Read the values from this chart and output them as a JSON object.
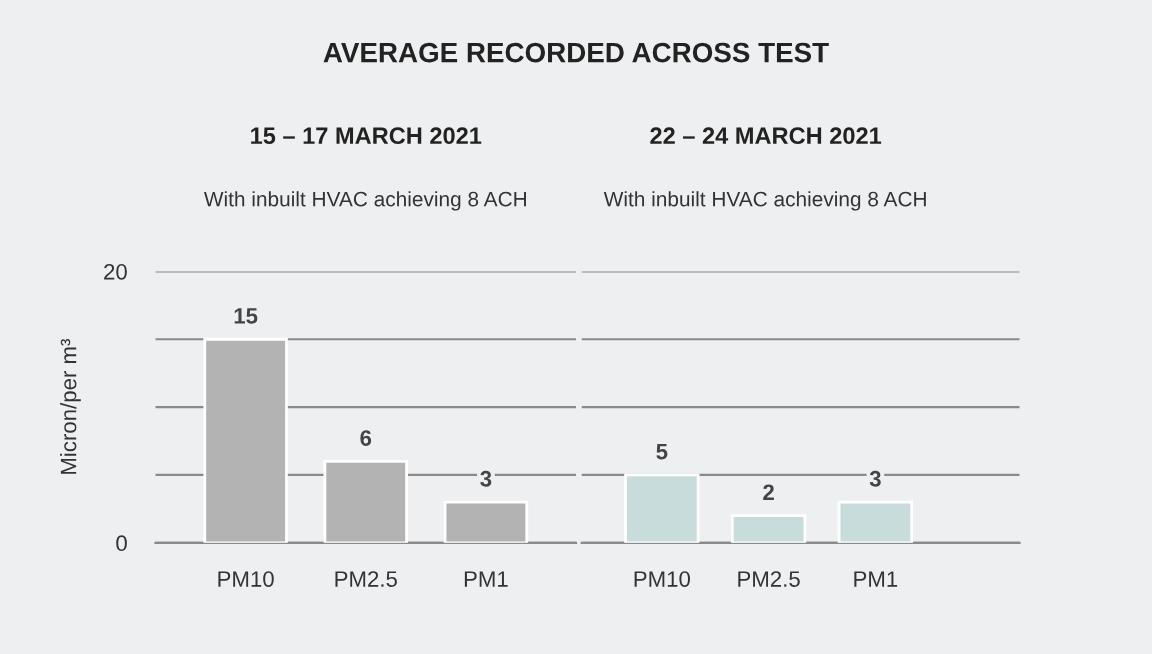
{
  "chart_data": [
    {
      "type": "bar",
      "title": "AVERAGE RECORDED ACROSS TEST",
      "subtitle": "15 – 17 MARCH 2021",
      "annotations": [
        "With inbuilt HVAC achieving 8 ACH"
      ],
      "ylabel": "Micron/per m³",
      "categories": [
        "PM10",
        "PM2.5",
        "PM1"
      ],
      "values": [
        15,
        6,
        3
      ],
      "color": "#b3b3b3",
      "data_labels": true,
      "ylim": [
        0,
        20
      ],
      "yticks": [
        0,
        {
          "value": 5,
          "label": null
        },
        {
          "value": 10,
          "label": null
        },
        {
          "value": 15,
          "label": null
        },
        20
      ],
      "grid": "y",
      "legend": false
    },
    {
      "type": "bar",
      "subtitle": "22 – 24 MARCH 2021",
      "annotations": [
        "With inbuilt HVAC achieving 8 ACH"
      ],
      "categories": [
        "PM10",
        "PM2.5",
        "PM1"
      ],
      "values": [
        5,
        2,
        3
      ],
      "color": "#c8dcdc",
      "data_labels": true,
      "ylim": [
        0,
        20
      ],
      "yticks": [
        0,
        {
          "value": 5,
          "label": null
        },
        {
          "value": 10,
          "label": null
        },
        {
          "value": 15,
          "label": null
        },
        20
      ],
      "grid": "y",
      "tick_labels": "x",
      "legend": false
    }
  ]
}
